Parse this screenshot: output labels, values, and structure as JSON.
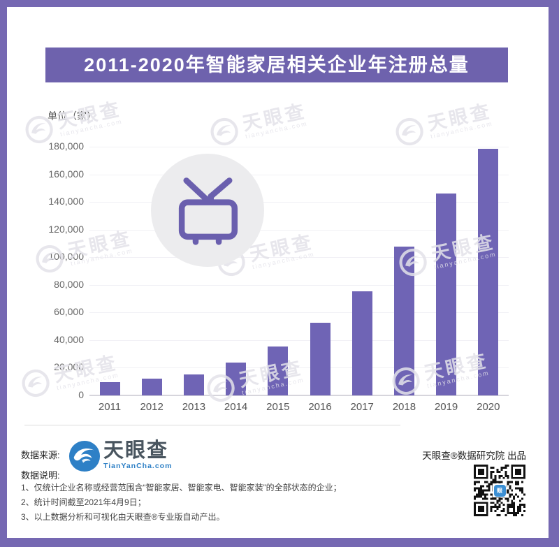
{
  "title": "2011-2020年智能家居相关企业年注册总量",
  "colors": {
    "frame_purple": "#7568b2",
    "banner_purple": "#6e62ad",
    "bar_purple": "#6f64b5",
    "logo_blue": "#2e80c6",
    "badge_gray": "#ececee"
  },
  "chart_data": {
    "type": "bar",
    "title": "2011-2020年智能家居相关企业年注册总量",
    "unit_label": "单位（家）",
    "categories": [
      "2011",
      "2012",
      "2013",
      "2014",
      "2015",
      "2016",
      "2017",
      "2018",
      "2019",
      "2020"
    ],
    "values": [
      9700,
      12100,
      15200,
      23800,
      35200,
      52700,
      75500,
      107600,
      146300,
      178400
    ],
    "ylim": [
      0,
      180000
    ],
    "ytick_step": 20000,
    "xlabel": "",
    "ylabel": "单位（家）",
    "grid": true,
    "legend": "none",
    "bar_color": "#6f64b5"
  },
  "watermark": {
    "brand": "天眼查",
    "domain": "tianyancha.com"
  },
  "footer": {
    "source_label": "数据来源:",
    "logo_text": "天眼查",
    "logo_domain": "TianYanCha.com",
    "credit": "天眼查®数据研究院 出品",
    "notes_label": "数据说明:",
    "notes": [
      "1、仅统计企业名称或经营范围含“智能家居、智能家电、智能家装”的全部状态的企业；",
      "2、统计时间截至2021年4月9日；",
      "3、以上数据分析和可视化由天眼查®专业版自动产出。"
    ]
  }
}
